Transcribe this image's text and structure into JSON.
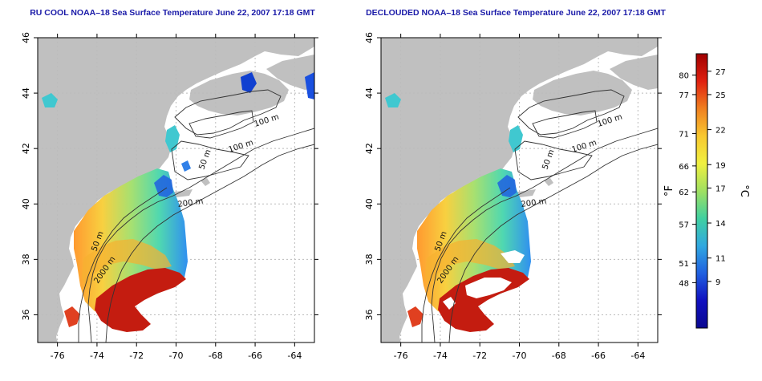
{
  "panels": [
    {
      "title": "RU COOL NOAA–18 Sea Surface Temperature June 22, 2007 17:18 GMT",
      "variant": "raw"
    },
    {
      "title": "DECLOUDED NOAA–18 Sea Surface Temperature June 22, 2007 17:18 GMT",
      "variant": "declouded"
    }
  ],
  "axes": {
    "x_ticks": [
      "-76",
      "-74",
      "-72",
      "-70",
      "-68",
      "-66",
      "-64"
    ],
    "y_ticks": [
      "36",
      "38",
      "40",
      "42",
      "44",
      "46"
    ]
  },
  "contour_labels": [
    "100 m",
    "100 m",
    "50 m",
    "200 m",
    "50 m",
    "2000 m"
  ],
  "colorbar": {
    "fahrenheit_unit": "°F",
    "celsius_unit": "°C",
    "fahrenheit_ticks": [
      "80",
      "77",
      "71",
      "66",
      "62",
      "57",
      "51",
      "48"
    ],
    "celsius_ticks": [
      "27",
      "25",
      "22",
      "19",
      "17",
      "14",
      "11",
      "9"
    ],
    "colors": [
      "#a00000",
      "#e02010",
      "#f08020",
      "#f8c830",
      "#f0f040",
      "#a0e060",
      "#40d0a0",
      "#30a8e0",
      "#2060e0",
      "#1010c0",
      "#0a0890"
    ]
  },
  "colors": {
    "land": "#c0c0c0",
    "ocean": "#ffffff",
    "title": "#1a1aa8",
    "grid": "#bbbbbb"
  }
}
